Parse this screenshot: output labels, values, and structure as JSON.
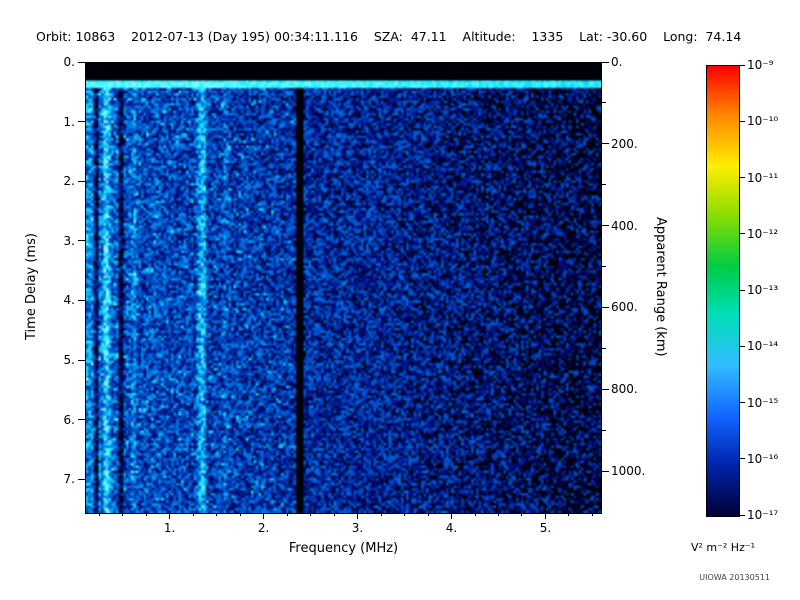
{
  "header": {
    "text": "Orbit: 10863    2012-07-13 (Day 195) 00:34:11.116    SZA:  47.11    Altitude:    1335    Lat: -30.60    Long:  74.14"
  },
  "footer": {
    "credit": "UIOWA 20130511"
  },
  "chart_data": {
    "type": "heatmap",
    "title": "",
    "xlabel": "Frequency (MHz)",
    "ylabel": "Time Delay (ms)",
    "y2label": "Apparent Range (km)",
    "xlim": [
      0.1,
      5.58
    ],
    "ylim": [
      0,
      7.55
    ],
    "y2lim": [
      0,
      1100
    ],
    "grid": false,
    "description": "Active ionospheric sounding ionogram: received spectral density vs sounding frequency and echo time delay. Mostly blue noise field, brighter (cyan) at low frequency, with bright vertical echo stripes near 0.3 and 1.3 MHz, dark vertical gaps near 0.2, 0.46 and 2.36 MHz, a black blanking band at zero delay and a bright transmit-pulse line just below it; field darkens with black patches above ~3.5 MHz.",
    "xticks": {
      "values": [
        1,
        2,
        3,
        4,
        5
      ],
      "labels": [
        "1.",
        "2.",
        "3.",
        "4.",
        "5."
      ]
    },
    "yticks": {
      "values": [
        0,
        1,
        2,
        3,
        4,
        5,
        6,
        7
      ],
      "labels": [
        "0.",
        "1.",
        "2.",
        "3.",
        "4.",
        "5.",
        "6.",
        "7."
      ]
    },
    "y2ticks": {
      "values": [
        0,
        200,
        400,
        600,
        800,
        1000
      ],
      "labels": [
        "0.",
        "200.",
        "400.",
        "600.",
        "800.",
        "1000."
      ]
    },
    "colorbar": {
      "unit": "V² m⁻² Hz⁻¹",
      "tick_labels": [
        "10⁻⁹",
        "10⁻¹⁰",
        "10⁻¹¹",
        "10⁻¹²",
        "10⁻¹³",
        "10⁻¹⁴",
        "10⁻¹⁵",
        "10⁻¹⁶",
        "10⁻¹⁷"
      ],
      "min": "1e-17",
      "max": "1e-9",
      "colors": [
        "#ff0000",
        "#ff8800",
        "#ffee00",
        "#88dd00",
        "#00cc44",
        "#00ddbb",
        "#33bbff",
        "#1166ff",
        "#0022aa",
        "#000033"
      ]
    },
    "features": {
      "blank_band_ms": 0.26,
      "transmit_pulse_ms": 0.4,
      "bright_stripes": [
        {
          "f": 0.3,
          "w": 0.04,
          "a": 0.3
        },
        {
          "f": 0.6,
          "w": 0.025,
          "a": 0.15
        },
        {
          "f": 1.32,
          "w": 0.05,
          "a": 0.33
        },
        {
          "f": 1.57,
          "w": 0.025,
          "a": 0.12
        }
      ],
      "dark_stripes": [
        {
          "f": 0.2,
          "w": 0.025,
          "a": 0.45
        },
        {
          "f": 0.46,
          "w": 0.028,
          "a": 0.4
        },
        {
          "f": 2.36,
          "w": 0.045,
          "a": 0.9
        }
      ]
    }
  }
}
